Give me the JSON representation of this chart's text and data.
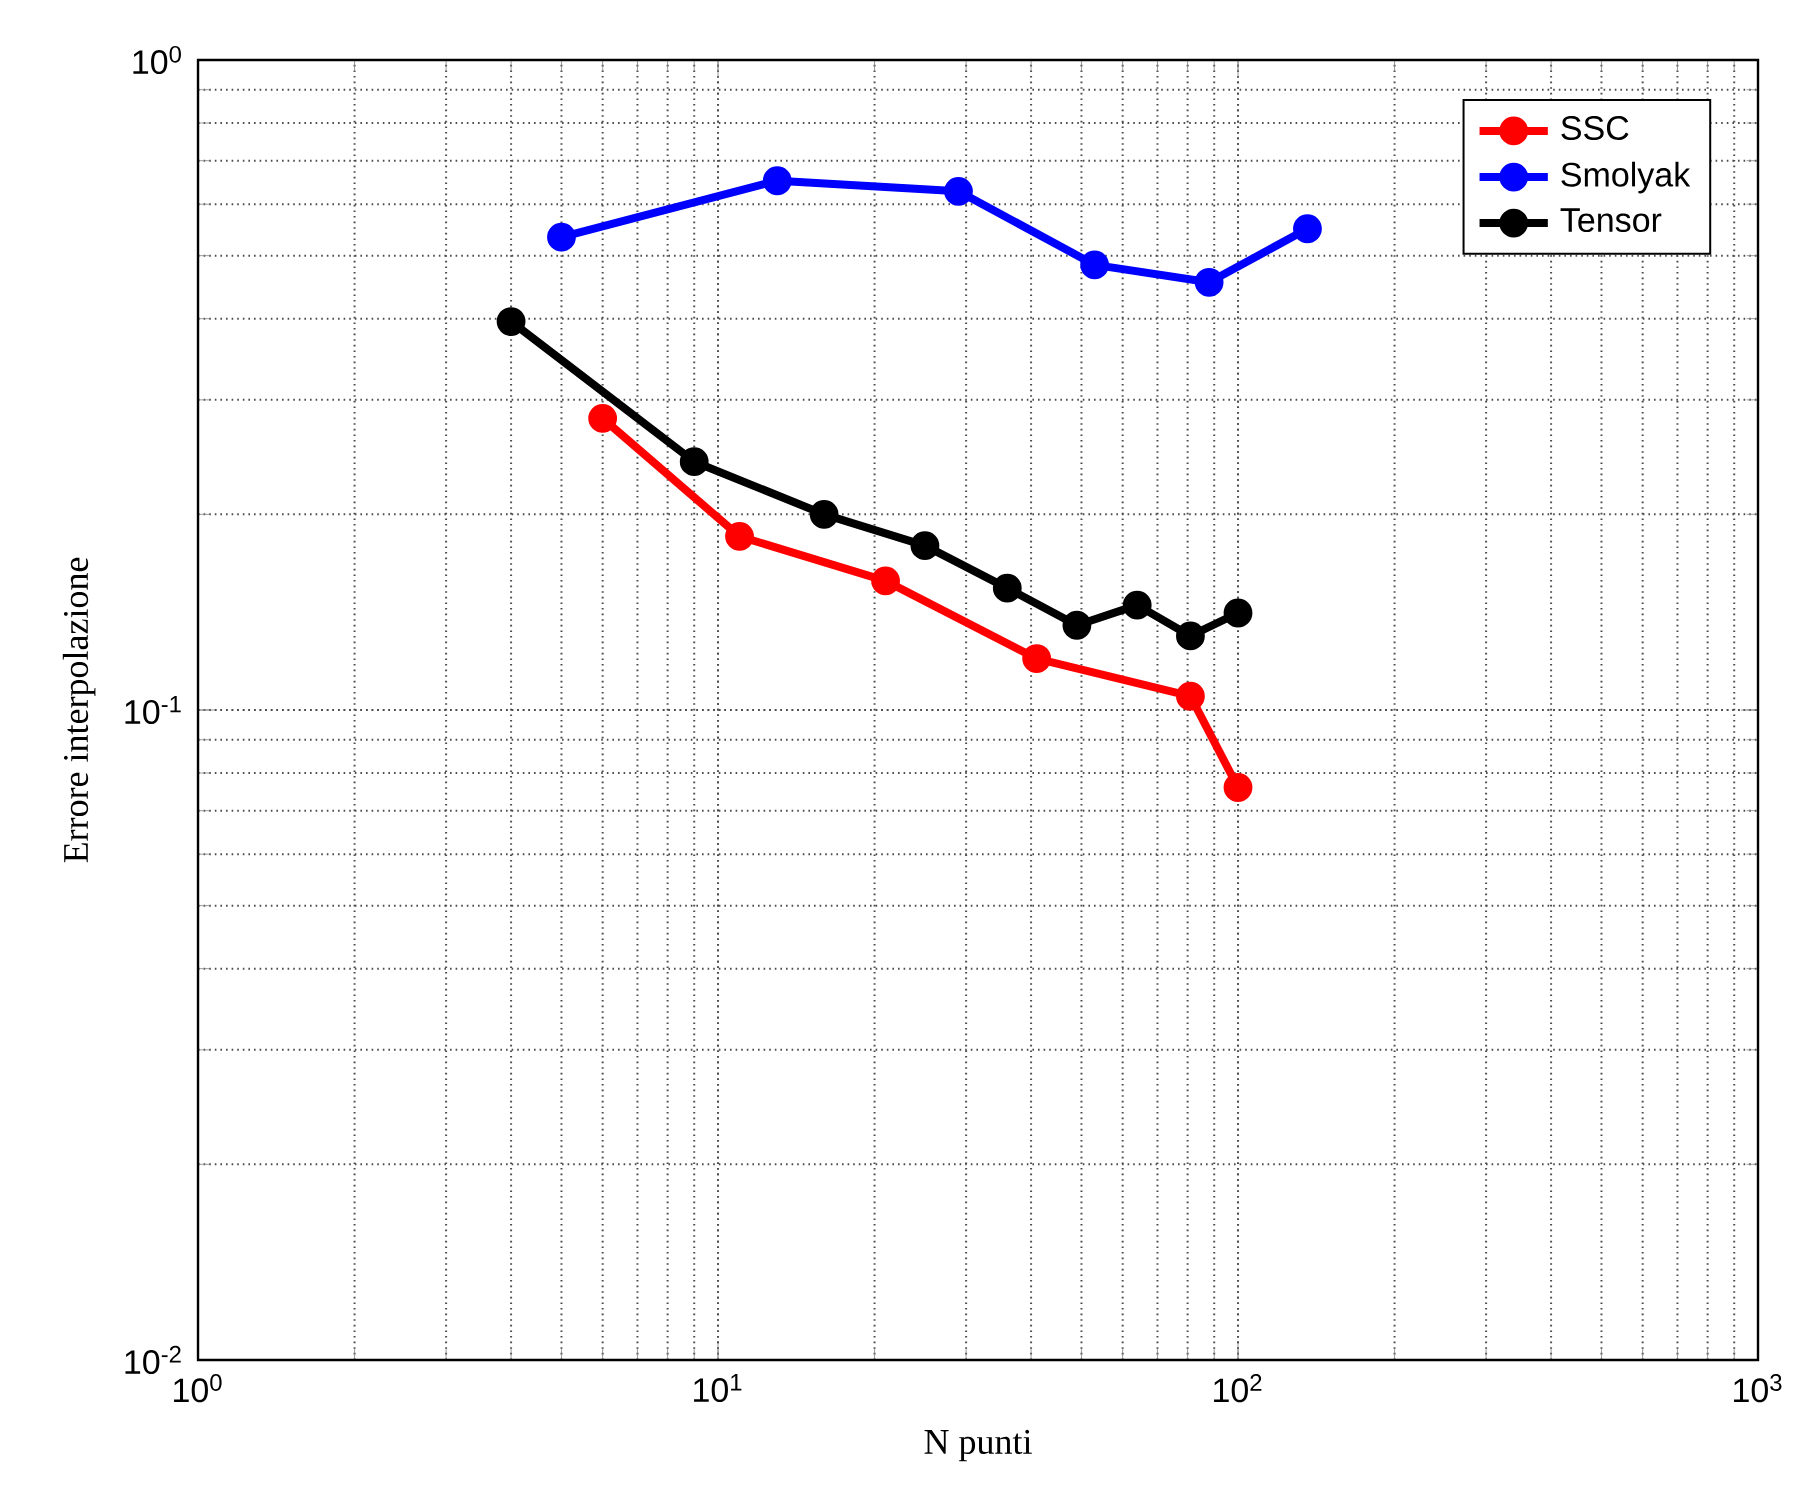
{
  "chart_data": {
    "type": "line",
    "xlabel": "N punti",
    "ylabel": "Errore interpolazione",
    "log": "xy",
    "grid": true,
    "legend": "top right",
    "marker": "circle",
    "line_style": "solid",
    "xlim": [
      1,
      1000
    ],
    "ylim": [
      0.01,
      1
    ],
    "xticks": [
      {
        "value": 1,
        "label": "10$^{0}$"
      },
      {
        "value": 10,
        "label": "10$^{1}$"
      },
      {
        "value": 100,
        "label": "10$^{2}$"
      },
      {
        "value": 1000,
        "label": "10$^{3}$"
      }
    ],
    "yticks": [
      {
        "value": 0.01,
        "label": "10$^{-2}$"
      },
      {
        "value": 0.1,
        "label": "10$^{-1}$"
      },
      {
        "value": 1,
        "label": "10$^{0}$"
      }
    ],
    "series": [
      {
        "name": "SSC",
        "color": "#ff0000",
        "x": [
          6,
          11,
          21,
          41,
          81,
          100
        ],
        "values": [
          0.281,
          0.185,
          0.158,
          0.12,
          0.105,
          0.076
        ]
      },
      {
        "name": "Smolyak",
        "color": "#0000ff",
        "x": [
          5,
          13,
          29,
          53,
          88,
          136
        ],
        "values": [
          0.534,
          0.652,
          0.628,
          0.484,
          0.455,
          0.55
        ]
      },
      {
        "name": "Tensor",
        "color": "#000000",
        "x": [
          4,
          9,
          16,
          25,
          36,
          49,
          64,
          81,
          100
        ],
        "values": [
          0.396,
          0.241,
          0.2,
          0.179,
          0.154,
          0.135,
          0.145,
          0.13,
          0.141
        ]
      }
    ]
  }
}
